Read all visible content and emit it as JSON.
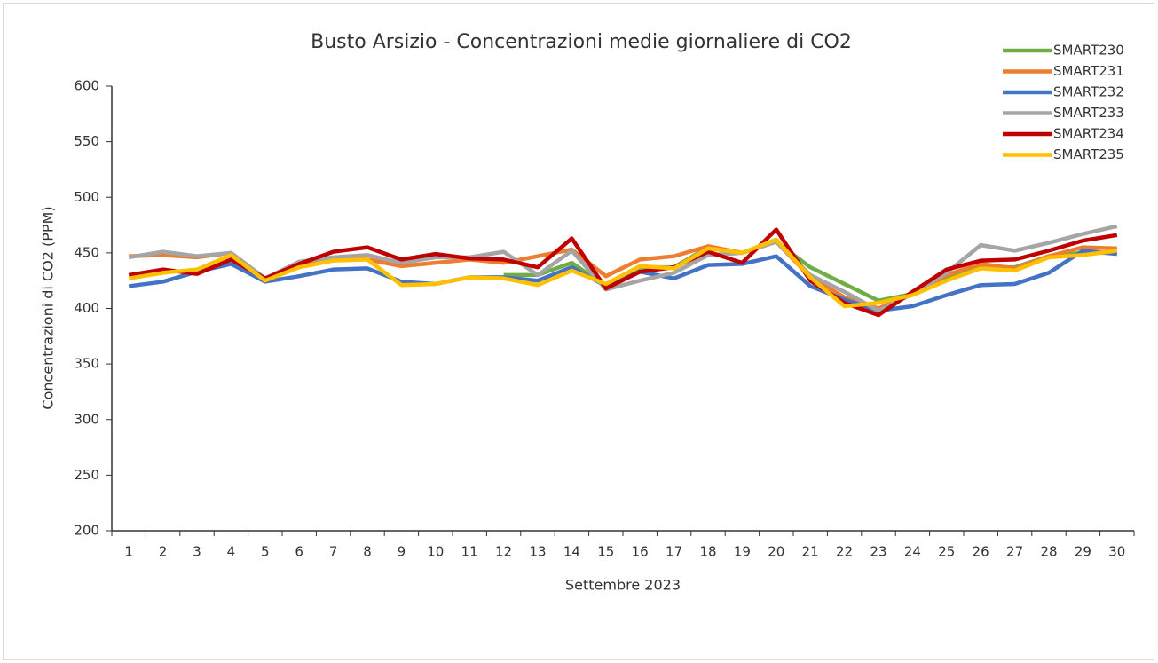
{
  "chart_data": {
    "type": "line",
    "title": "Busto Arsizio - Concentrazioni  medie giornaliere di CO2",
    "x_label": "Settembre 2023",
    "y_label": "Concentrazioni di CO2 (PPM)",
    "categories": [
      "1",
      "2",
      "3",
      "4",
      "5",
      "6",
      "7",
      "8",
      "9",
      "10",
      "11",
      "12",
      "13",
      "14",
      "15",
      "16",
      "17",
      "18",
      "19",
      "20",
      "21",
      "22",
      "23",
      "24",
      "25",
      "26",
      "27",
      "28",
      "29",
      "30"
    ],
    "ylim": [
      200,
      600
    ],
    "yticks": [
      200,
      250,
      300,
      350,
      400,
      450,
      500,
      550,
      600
    ],
    "legend": "top-right",
    "series": [
      {
        "name": "SMART230",
        "color": "#70ad47",
        "values": [
          null,
          null,
          null,
          null,
          null,
          null,
          null,
          null,
          null,
          null,
          null,
          430,
          430,
          441,
          420,
          437,
          437,
          455,
          450,
          460,
          437,
          422,
          407,
          413,
          428,
          437,
          437,
          447,
          450,
          450
        ]
      },
      {
        "name": "SMART231",
        "color": "#ed7d31",
        "values": [
          447,
          448,
          446,
          450,
          426,
          440,
          445,
          444,
          438,
          441,
          444,
          441,
          447,
          453,
          429,
          444,
          447,
          456,
          450,
          460,
          428,
          410,
          400,
          413,
          430,
          440,
          436,
          447,
          455,
          454
        ]
      },
      {
        "name": "SMART232",
        "color": "#4472c4",
        "values": [
          420,
          424,
          433,
          440,
          424,
          429,
          435,
          436,
          424,
          422,
          428,
          428,
          425,
          437,
          420,
          433,
          427,
          439,
          440,
          447,
          420,
          408,
          398,
          402,
          412,
          421,
          422,
          432,
          452,
          449
        ]
      },
      {
        "name": "SMART233",
        "color": "#a5a5a5",
        "values": [
          446,
          451,
          447,
          450,
          427,
          442,
          446,
          448,
          441,
          446,
          446,
          451,
          430,
          452,
          417,
          425,
          432,
          448,
          450,
          460,
          430,
          415,
          398,
          413,
          432,
          457,
          452,
          459,
          467,
          474
        ]
      },
      {
        "name": "SMART234",
        "color": "#c00000",
        "values": [
          430,
          435,
          431,
          444,
          427,
          440,
          451,
          455,
          444,
          449,
          445,
          444,
          437,
          463,
          418,
          433,
          437,
          451,
          441,
          471,
          425,
          405,
          394,
          415,
          435,
          443,
          444,
          452,
          461,
          466
        ]
      },
      {
        "name": "SMART235",
        "color": "#ffc000",
        "values": [
          427,
          432,
          435,
          448,
          425,
          437,
          443,
          444,
          421,
          422,
          428,
          427,
          421,
          434,
          422,
          438,
          436,
          454,
          450,
          462,
          428,
          402,
          405,
          412,
          425,
          436,
          434,
          446,
          448,
          452
        ]
      }
    ]
  }
}
